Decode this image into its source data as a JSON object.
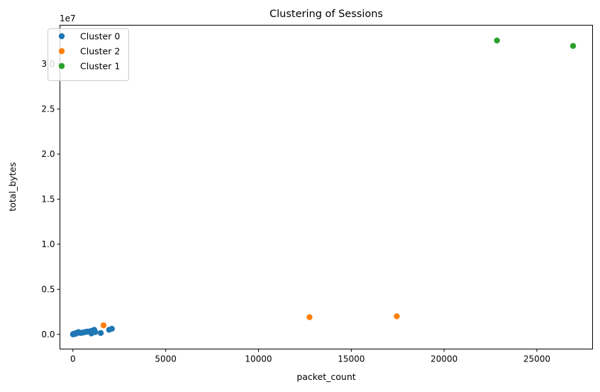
{
  "chart_data": {
    "type": "scatter",
    "title": "Clustering of Sessions",
    "xlabel": "packet_count",
    "ylabel": "total_bytes",
    "y_offset_label": "1e7",
    "xlim": [
      -700,
      28000
    ],
    "ylim": [
      -1630000,
      34300000
    ],
    "x_ticks": [
      0,
      5000,
      10000,
      15000,
      20000,
      25000
    ],
    "x_tick_labels": [
      "0",
      "5000",
      "10000",
      "15000",
      "20000",
      "25000"
    ],
    "y_ticks": [
      0,
      5000000,
      10000000,
      15000000,
      20000000,
      25000000,
      30000000
    ],
    "y_tick_labels": [
      "0.0",
      "0.5",
      "1.0",
      "1.5",
      "2.0",
      "2.5",
      "3.0"
    ],
    "grid": false,
    "legend_position": "top-left",
    "series": [
      {
        "name": "Cluster 0",
        "color": "#1f77b4",
        "points": [
          [
            5,
            5000
          ],
          [
            10,
            12000
          ],
          [
            20,
            20000
          ],
          [
            30,
            35000
          ],
          [
            40,
            15000
          ],
          [
            50,
            60000
          ],
          [
            60,
            30000
          ],
          [
            80,
            45000
          ],
          [
            100,
            80000
          ],
          [
            120,
            100000
          ],
          [
            150,
            60000
          ],
          [
            200,
            150000
          ],
          [
            250,
            200000
          ],
          [
            300,
            250000
          ],
          [
            400,
            150000
          ],
          [
            500,
            180000
          ],
          [
            600,
            230000
          ],
          [
            700,
            270000
          ],
          [
            800,
            300000
          ],
          [
            950,
            350000
          ],
          [
            1000,
            100000
          ],
          [
            1050,
            400000
          ],
          [
            1150,
            500000
          ],
          [
            1200,
            250000
          ],
          [
            1500,
            150000
          ],
          [
            1950,
            500000
          ],
          [
            2100,
            620000
          ]
        ]
      },
      {
        "name": "Cluster 2",
        "color": "#ff7f0e",
        "points": [
          [
            1650,
            1000000
          ],
          [
            12750,
            1900000
          ],
          [
            17450,
            2000000
          ]
        ]
      },
      {
        "name": "Cluster 1",
        "color": "#2ca02c",
        "points": [
          [
            22850,
            32600000
          ],
          [
            26950,
            32000000
          ]
        ]
      }
    ]
  }
}
